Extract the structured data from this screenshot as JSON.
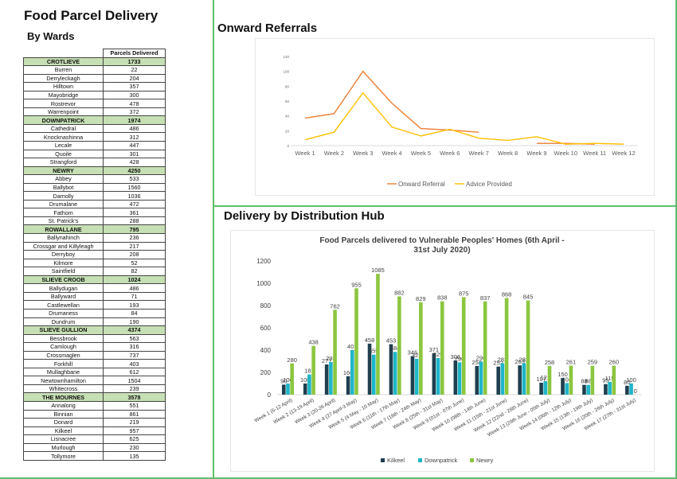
{
  "left": {
    "title": "Food Parcel Delivery",
    "subtitle": "By Wards",
    "table_header": "Parcels Delivered",
    "rows": [
      {
        "name": "CROTLIEVE",
        "value": "1733",
        "ward": true
      },
      {
        "name": "Burren",
        "value": "22"
      },
      {
        "name": "Derryleckagh",
        "value": "204"
      },
      {
        "name": "Hilltown",
        "value": "357"
      },
      {
        "name": "Mayobridge",
        "value": "300"
      },
      {
        "name": "Rostrevor",
        "value": "478"
      },
      {
        "name": "Warrenpoint",
        "value": "372"
      },
      {
        "name": "DOWNPATRICK",
        "value": "1974",
        "ward": true
      },
      {
        "name": "Cathedral",
        "value": "486"
      },
      {
        "name": "Knocknashinna",
        "value": "312"
      },
      {
        "name": "Lecale",
        "value": "447"
      },
      {
        "name": "Quoile",
        "value": "301"
      },
      {
        "name": "Strangford",
        "value": "428"
      },
      {
        "name": "NEWRY",
        "value": "4250",
        "ward": true
      },
      {
        "name": "Abbey",
        "value": "533"
      },
      {
        "name": "Ballybot",
        "value": "1560"
      },
      {
        "name": "Damolly",
        "value": "1036"
      },
      {
        "name": "Drumalane",
        "value": "472"
      },
      {
        "name": "Fathom",
        "value": "361"
      },
      {
        "name": "St. Patrick's",
        "value": "288"
      },
      {
        "name": "ROWALLANE",
        "value": "795",
        "ward": true
      },
      {
        "name": "Ballynahinch",
        "value": "236"
      },
      {
        "name": "Crossgar and Killyleagh",
        "value": "217"
      },
      {
        "name": "Derryboy",
        "value": "208"
      },
      {
        "name": "Kilmore",
        "value": "52"
      },
      {
        "name": "Saintfield",
        "value": "82"
      },
      {
        "name": "SLIEVE CROOB",
        "value": "1024",
        "ward": true
      },
      {
        "name": "Ballydugan",
        "value": "486"
      },
      {
        "name": "Ballyward",
        "value": "71"
      },
      {
        "name": "Castlewellan",
        "value": "193"
      },
      {
        "name": "Drumaness",
        "value": "84"
      },
      {
        "name": "Dundrum",
        "value": "190"
      },
      {
        "name": "SLIEVE GULLION",
        "value": "4374",
        "ward": true
      },
      {
        "name": "Bessbrook",
        "value": "563"
      },
      {
        "name": "Camlough",
        "value": "316"
      },
      {
        "name": "Crossmaglen",
        "value": "737"
      },
      {
        "name": "Forkhill",
        "value": "403"
      },
      {
        "name": "Mullaghbane",
        "value": "612"
      },
      {
        "name": "Newtownhamilton",
        "value": "1504"
      },
      {
        "name": "Whitecross",
        "value": "239"
      },
      {
        "name": "THE MOURNES",
        "value": "3578",
        "ward": true
      },
      {
        "name": "Annalong",
        "value": "551"
      },
      {
        "name": "Binnian",
        "value": "861"
      },
      {
        "name": "Donard",
        "value": "219"
      },
      {
        "name": "Kilkeel",
        "value": "957"
      },
      {
        "name": "Lisnacree",
        "value": "625"
      },
      {
        "name": "Murlough",
        "value": "230"
      },
      {
        "name": "Tollymore",
        "value": "135"
      }
    ]
  },
  "referrals": {
    "heading": "Onward Referrals"
  },
  "hub": {
    "heading": "Delivery by Distribution Hub"
  },
  "chart_data": [
    {
      "type": "line",
      "title": "",
      "categories": [
        "Week 1",
        "Week 2",
        "Week 3",
        "Week 4",
        "Week 5",
        "Week 6",
        "Week 7",
        "Week 8",
        "Week 9",
        "Week 10",
        "Week 11",
        "Week 12"
      ],
      "ylim": [
        0,
        120
      ],
      "yticks": [
        "0",
        "20",
        "40",
        "60",
        "80",
        "100",
        "120"
      ],
      "grid": false,
      "legend": "bottom",
      "series": [
        {
          "name": "Onward Referral",
          "color": "#ed7d31",
          "values": [
            37,
            43,
            100,
            57,
            23,
            21,
            18,
            null,
            3,
            3,
            2,
            null
          ]
        },
        {
          "name": "Advice Provided",
          "color": "#ffc000",
          "values": [
            8,
            18,
            71,
            25,
            13,
            22,
            10,
            7,
            12,
            2,
            3,
            2
          ]
        }
      ]
    },
    {
      "type": "bar",
      "title": "Food Parcels delivered to Vulnerable Peoples' Homes (6th April - 31st July 2020)",
      "categories": [
        "Week 1 (6-12 April)",
        "Week 2 (13-19 April)",
        "Week 3 (20-26 April)",
        "Week 4 (27 April-3 May)",
        "Week 5 (4 May - 10 May)",
        "Week 6 (11th - 17th May)",
        "Week 7 (18th - 24th May)",
        "Week 8 (25th - 31st May)",
        "Week 9 (01st - 07th June)",
        "Week 10 (08th - 14th June)",
        "Week 11 (15th - 21st June)",
        "Week 12 (22nd - 28th June)",
        "Week 13 (29th June - 05th July)",
        "Week 14 (06th - 12th July)",
        "Week 15 (13th - 19th July)",
        "Week 16 (20th - 26th July)",
        "Week 17 (27th - 31st July)"
      ],
      "ylim": [
        0,
        1200
      ],
      "yticks": [
        "0",
        "200",
        "400",
        "600",
        "800",
        "1000",
        "1200"
      ],
      "legend": "bottom",
      "series": [
        {
          "name": "Kilkeel",
          "color": "#1f3f4f",
          "values": [
            90,
            100,
            271,
            166,
            458,
            453,
            346,
            371,
            306,
            258,
            252,
            263,
            107,
            150,
            88,
            95,
            80
          ],
          "labels": [
            "90",
            "100",
            "271",
            "166",
            "458",
            "453",
            "346",
            "371",
            "306",
            "258",
            "252",
            "263",
            "107",
            "150",
            "88",
            "95",
            "80"
          ]
        },
        {
          "name": "Downpatrick",
          "color": "#1fb5c8",
          "values": [
            100,
            181,
            293,
            401,
            359,
            384,
            322,
            329,
            290,
            296,
            282,
            282,
            121,
            104,
            88,
            115,
            100
          ],
          "labels": [
            "100",
            "181",
            "293",
            "401",
            "359",
            "384",
            "322",
            "329",
            "290",
            "296",
            "282",
            "282",
            "121",
            "104",
            "88",
            "115",
            "100"
          ]
        },
        {
          "name": "Newry",
          "color": "#8cc63f",
          "values": [
            280,
            438,
            762,
            955,
            1085,
            882,
            829,
            838,
            875,
            837,
            868,
            845,
            258,
            261,
            259,
            260,
            0
          ],
          "labels": [
            "280",
            "438",
            "762",
            "955",
            "1085",
            "882",
            "829",
            "838",
            "875",
            "837",
            "868",
            "845",
            "258",
            "261",
            "259",
            "260",
            "0"
          ]
        }
      ]
    }
  ]
}
